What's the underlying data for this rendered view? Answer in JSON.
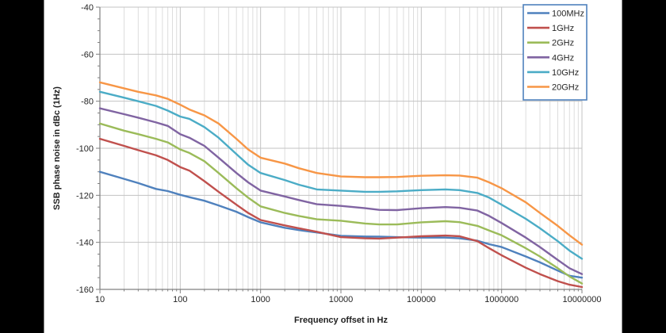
{
  "window": {
    "background_color": "#000000",
    "chart_background_color": "#FFFFFF"
  },
  "colors": {
    "axis_line": "#808080",
    "grid_major": "#c3c3c3",
    "grid_minor": "#dddddd",
    "tick_text": "#262626",
    "legend_border": "#4F81BD"
  },
  "chart_data": {
    "type": "line",
    "title": "",
    "xlabel": "Frequency offset in Hz",
    "ylabel": "SSB phase noise in dBc (1Hz)",
    "x_scale": "log",
    "xlim": [
      10,
      10000000
    ],
    "ylim": [
      -160,
      -40
    ],
    "x_tick_labels": [
      "10",
      "100",
      "1000",
      "10000",
      "100000",
      "1000000",
      "10000000"
    ],
    "y_tick_labels": [
      "-40",
      "-60",
      "-80",
      "-100",
      "-120",
      "-140",
      "-160"
    ],
    "grid": {
      "horizontal": "major only",
      "vertical": "major and log minor"
    },
    "legend_position": "top-right-inside",
    "x": [
      10,
      20,
      30,
      50,
      70,
      100,
      130,
      200,
      300,
      500,
      700,
      1000,
      2000,
      3000,
      5000,
      10000,
      20000,
      30000,
      50000,
      100000,
      200000,
      300000,
      500000,
      700000,
      1000000,
      2000000,
      3000000,
      5000000,
      7000000,
      10000000
    ],
    "series": [
      {
        "name": "100MHz",
        "color": "#4F81BD",
        "values": [
          -110,
          -113,
          -114.8,
          -117.3,
          -118.2,
          -119.8,
          -120.8,
          -122.3,
          -124.3,
          -127,
          -129.3,
          -131.5,
          -133.8,
          -134.8,
          -135.8,
          -137.2,
          -137.5,
          -137.6,
          -137.8,
          -138,
          -138,
          -138.3,
          -139.3,
          -140.8,
          -142,
          -146,
          -148.5,
          -152,
          -154.2,
          -155
        ]
      },
      {
        "name": "1GHz",
        "color": "#C0504D",
        "values": [
          -96,
          -99,
          -100.8,
          -103,
          -105,
          -108,
          -109.5,
          -114,
          -118.5,
          -124,
          -127.5,
          -130.5,
          -132.8,
          -134,
          -135.5,
          -137.8,
          -138.3,
          -138.4,
          -138,
          -137.4,
          -137.1,
          -137.4,
          -139.5,
          -142.5,
          -145.5,
          -150.8,
          -153.5,
          -156.5,
          -158,
          -159
        ]
      },
      {
        "name": "2GHz",
        "color": "#9BBB59",
        "values": [
          -89.5,
          -92.5,
          -94,
          -96,
          -97.5,
          -100.5,
          -102,
          -105.5,
          -110.5,
          -117,
          -121,
          -124.7,
          -127.5,
          -128.8,
          -130.2,
          -130.8,
          -132,
          -132.4,
          -132.4,
          -131.5,
          -131,
          -131.4,
          -133,
          -135,
          -137,
          -142.5,
          -146,
          -151,
          -154.5,
          -157.5
        ]
      },
      {
        "name": "4GHz",
        "color": "#8064A2",
        "values": [
          -83,
          -85.5,
          -87,
          -89,
          -90.5,
          -94,
          -95.5,
          -99,
          -104,
          -110.5,
          -114.5,
          -118,
          -120.5,
          -122,
          -123.8,
          -124.5,
          -125.5,
          -126.2,
          -126.3,
          -125.5,
          -125,
          -125.3,
          -126.5,
          -128.8,
          -131.8,
          -138,
          -142,
          -147.5,
          -151,
          -153.5
        ]
      },
      {
        "name": "10GHz",
        "color": "#4BACC6",
        "values": [
          -76,
          -78.5,
          -80,
          -82,
          -84,
          -86.5,
          -87.5,
          -91,
          -95.5,
          -102.5,
          -107,
          -110.5,
          -113.5,
          -115.5,
          -117.5,
          -118,
          -118.5,
          -118.5,
          -118.3,
          -117.8,
          -117.5,
          -117.8,
          -119,
          -121,
          -124,
          -130,
          -134,
          -139.5,
          -143.5,
          -147
        ]
      },
      {
        "name": "20GHz",
        "color": "#F79646",
        "values": [
          -72,
          -74.5,
          -76,
          -77.5,
          -79,
          -81.5,
          -83.5,
          -86,
          -89.5,
          -96,
          -100.5,
          -104,
          -106.5,
          -108.5,
          -110.5,
          -112,
          -112.3,
          -112.3,
          -112.2,
          -111.7,
          -111.5,
          -111.6,
          -112.5,
          -114.5,
          -117,
          -123,
          -127.5,
          -133,
          -137,
          -141
        ]
      }
    ]
  }
}
